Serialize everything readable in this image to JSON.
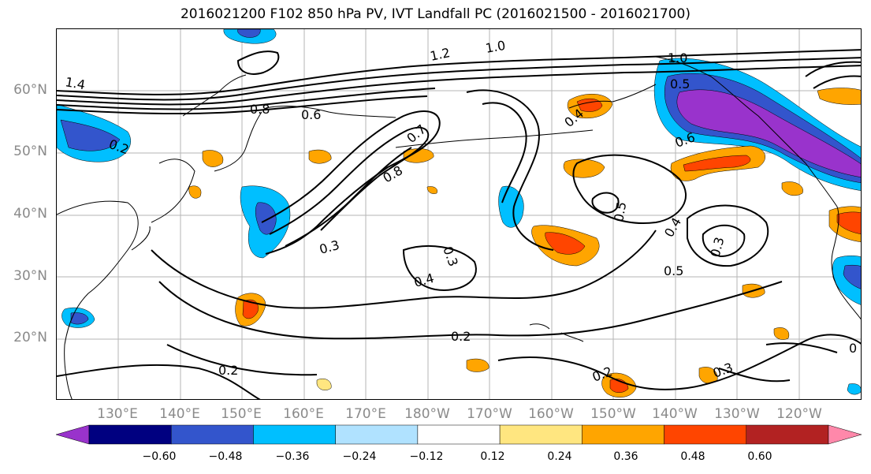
{
  "title": "2016021200 F102 850 hPa PV, IVT Landfall PC (2016021500 - 2016021700)",
  "lat_labels": [
    "60°N",
    "50°N",
    "40°N",
    "30°N",
    "20°N"
  ],
  "lon_labels": [
    "130°E",
    "140°E",
    "150°E",
    "160°E",
    "170°E",
    "180°W",
    "170°W",
    "160°W",
    "150°W",
    "140°W",
    "130°W",
    "120°W"
  ],
  "contour_labels": [
    "1.4",
    "1.2",
    "1.0",
    "1.0",
    "0.8",
    "0.6",
    "0.2",
    "0.7",
    "0.8",
    "0.5",
    "0.6",
    "0.4",
    "0.5",
    "0.4",
    "0.3",
    "0.5",
    "0.3",
    "0.4",
    "0.3",
    "0.2",
    "0.2",
    "0.2",
    "0.3",
    "0"
  ],
  "colorbar": {
    "ticks": [
      "−0.60",
      "−0.48",
      "−0.36",
      "−0.24",
      "−0.12",
      "0.12",
      "0.24",
      "0.36",
      "0.48",
      "0.60"
    ],
    "colors": [
      "#9933cc",
      "#000080",
      "#3355cc",
      "#00bfff",
      "#b0e2ff",
      "#ffffff",
      "#ffe680",
      "#ffa500",
      "#ff4500",
      "#b22222",
      "#ff88aa"
    ]
  }
}
